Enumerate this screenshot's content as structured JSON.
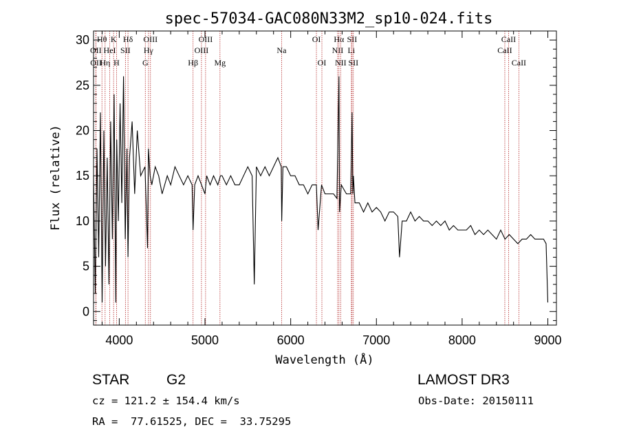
{
  "chart_data": {
    "type": "line",
    "title": "spec-57034-GAC080N33M2_sp10-024.fits",
    "xlabel": "Wavelength (Å)",
    "ylabel": "Flux (relative)",
    "xlim": [
      3700,
      9100
    ],
    "ylim": [
      -1.5,
      31
    ],
    "xticks": [
      4000,
      5000,
      6000,
      7000,
      8000,
      9000
    ],
    "yticks": [
      0,
      5,
      10,
      15,
      20,
      25,
      30
    ],
    "series": [
      {
        "name": "flux",
        "color": "#000000",
        "x": [
          3700,
          3720,
          3740,
          3760,
          3780,
          3800,
          3820,
          3840,
          3860,
          3880,
          3900,
          3920,
          3940,
          3960,
          3970,
          3990,
          4010,
          4030,
          4050,
          4070,
          4090,
          4102,
          4120,
          4150,
          4180,
          4210,
          4250,
          4300,
          4330,
          4340,
          4360,
          4380,
          4420,
          4460,
          4500,
          4560,
          4600,
          4650,
          4700,
          4750,
          4800,
          4850,
          4861,
          4880,
          4920,
          4960,
          5000,
          5020,
          5060,
          5100,
          5150,
          5180,
          5200,
          5250,
          5300,
          5350,
          5400,
          5450,
          5500,
          5550,
          5575,
          5600,
          5650,
          5700,
          5750,
          5800,
          5850,
          5890,
          5895,
          5910,
          5950,
          6000,
          6050,
          6100,
          6150,
          6200,
          6250,
          6300,
          6320,
          6360,
          6400,
          6450,
          6500,
          6540,
          6563,
          6570,
          6590,
          6620,
          6650,
          6680,
          6700,
          6716,
          6725,
          6731,
          6750,
          6800,
          6850,
          6900,
          6950,
          7000,
          7050,
          7100,
          7150,
          7200,
          7250,
          7270,
          7300,
          7350,
          7400,
          7450,
          7500,
          7550,
          7600,
          7650,
          7700,
          7750,
          7800,
          7850,
          7900,
          7950,
          8000,
          8050,
          8100,
          8150,
          8200,
          8250,
          8300,
          8350,
          8400,
          8450,
          8500,
          8550,
          8600,
          8650,
          8700,
          8750,
          8800,
          8850,
          8900,
          8950,
          8980,
          9000
        ],
        "y": [
          15,
          2,
          18,
          6,
          22,
          1,
          20,
          5,
          17,
          3,
          21,
          8,
          24,
          1,
          19,
          10,
          23,
          12,
          26,
          8,
          18,
          6,
          17,
          21,
          13,
          20,
          15,
          16,
          7,
          18,
          15,
          14,
          16,
          15,
          13,
          15,
          14,
          16,
          15,
          14,
          15,
          14,
          9,
          14,
          15,
          14,
          13,
          15,
          14,
          15,
          14,
          15,
          15,
          14,
          15,
          14,
          14,
          15,
          16,
          15,
          3,
          16,
          15,
          16,
          15,
          16,
          17,
          16,
          10,
          16,
          16,
          15,
          15,
          14,
          14,
          13,
          14,
          14,
          9,
          14,
          13,
          13,
          13,
          12.5,
          26,
          11,
          14,
          13.5,
          13,
          13,
          13,
          22,
          13,
          15,
          12,
          12,
          11,
          12,
          11,
          11.5,
          11,
          10,
          11,
          11,
          10.5,
          6,
          10,
          10,
          11,
          10,
          10.5,
          10,
          10,
          9.5,
          10,
          9.5,
          10,
          9,
          9.5,
          9,
          9,
          9,
          9.5,
          8.5,
          9,
          8.5,
          9,
          8.5,
          8,
          9,
          8,
          8.5,
          8,
          7.5,
          8,
          8,
          8.5,
          8,
          8,
          8,
          7.5,
          1
        ]
      }
    ],
    "lines": [
      {
        "label": "OII",
        "w": 3727,
        "row": 2
      },
      {
        "label": "OII",
        "w": 3729,
        "row": 3
      },
      {
        "label": "Hθ",
        "w": 3798,
        "row": 1
      },
      {
        "label": "Hη",
        "w": 3835,
        "row": 3
      },
      {
        "label": "HeI",
        "w": 3889,
        "row": 2
      },
      {
        "label": "K",
        "w": 3934,
        "row": 1
      },
      {
        "label": "H",
        "w": 3968,
        "row": 3
      },
      {
        "label": "SII",
        "w": 4072,
        "row": 2
      },
      {
        "label": "Hδ",
        "w": 4102,
        "row": 1
      },
      {
        "label": "G",
        "w": 4304,
        "row": 3
      },
      {
        "label": "Hγ",
        "w": 4341,
        "row": 2
      },
      {
        "label": "OIII",
        "w": 4364,
        "row": 1
      },
      {
        "label": "Hβ",
        "w": 4861,
        "row": 3
      },
      {
        "label": "OIII",
        "w": 4959,
        "row": 2
      },
      {
        "label": "OIII",
        "w": 5007,
        "row": 1
      },
      {
        "label": "Mg",
        "w": 5175,
        "row": 3
      },
      {
        "label": "Na",
        "w": 5894,
        "row": 2
      },
      {
        "label": "OI",
        "w": 6300,
        "row": 1
      },
      {
        "label": "OI",
        "w": 6364,
        "row": 3
      },
      {
        "label": "NII",
        "w": 6548,
        "row": 2
      },
      {
        "label": "Hα",
        "w": 6563,
        "row": 1
      },
      {
        "label": "NII",
        "w": 6583,
        "row": 3
      },
      {
        "label": "Li",
        "w": 6708,
        "row": 2
      },
      {
        "label": "SII",
        "w": 6716,
        "row": 1
      },
      {
        "label": "SII",
        "w": 6731,
        "row": 3
      },
      {
        "label": "CaII",
        "w": 8498,
        "row": 2
      },
      {
        "label": "CaII",
        "w": 8542,
        "row": 1
      },
      {
        "label": "CaII",
        "w": 8662,
        "row": 3
      }
    ],
    "line_color": "#b22222"
  },
  "info": {
    "class": "STAR",
    "subclass": "G2",
    "survey": "LAMOST DR3",
    "cz": "cz = 121.2 ± 154.4 km/s",
    "obs_date": "Obs-Date: 20150111",
    "coords": "RA =  77.61525, DEC =  33.75295"
  }
}
